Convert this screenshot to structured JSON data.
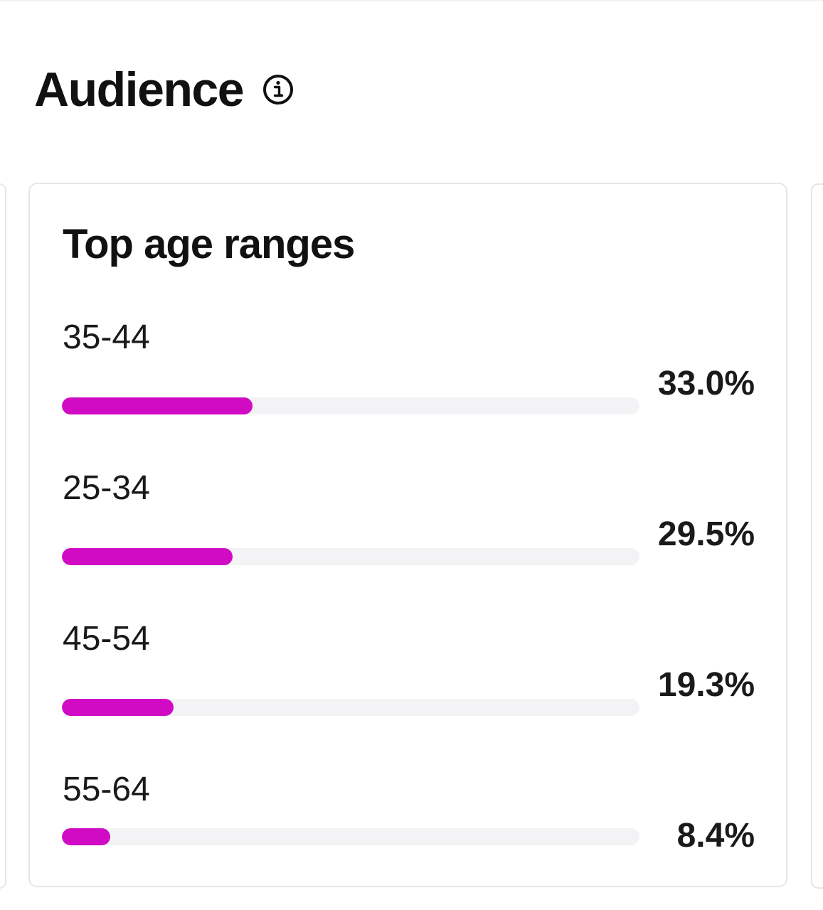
{
  "header": {
    "title": "Audience",
    "info_icon": "info-circle-icon"
  },
  "card": {
    "title": "Top age ranges",
    "accent_color": "#d10bc4",
    "track_color": "#f3f3f5"
  },
  "chart_data": {
    "type": "bar",
    "orientation": "horizontal",
    "title": "Top age ranges",
    "categories": [
      "35-44",
      "25-34",
      "45-54",
      "55-64"
    ],
    "values": [
      33.0,
      29.5,
      19.3,
      8.4
    ],
    "value_labels": [
      "33.0%",
      "29.5%",
      "19.3%",
      "8.4%"
    ],
    "xlim": [
      0,
      100
    ],
    "grid": false
  },
  "rows": [
    {
      "label": "35-44",
      "value": "33.0%",
      "percent": 33.0
    },
    {
      "label": "25-34",
      "value": "29.5%",
      "percent": 29.5
    },
    {
      "label": "45-54",
      "value": "19.3%",
      "percent": 19.3
    },
    {
      "label": "55-64",
      "value": "8.4%",
      "percent": 8.4
    }
  ]
}
